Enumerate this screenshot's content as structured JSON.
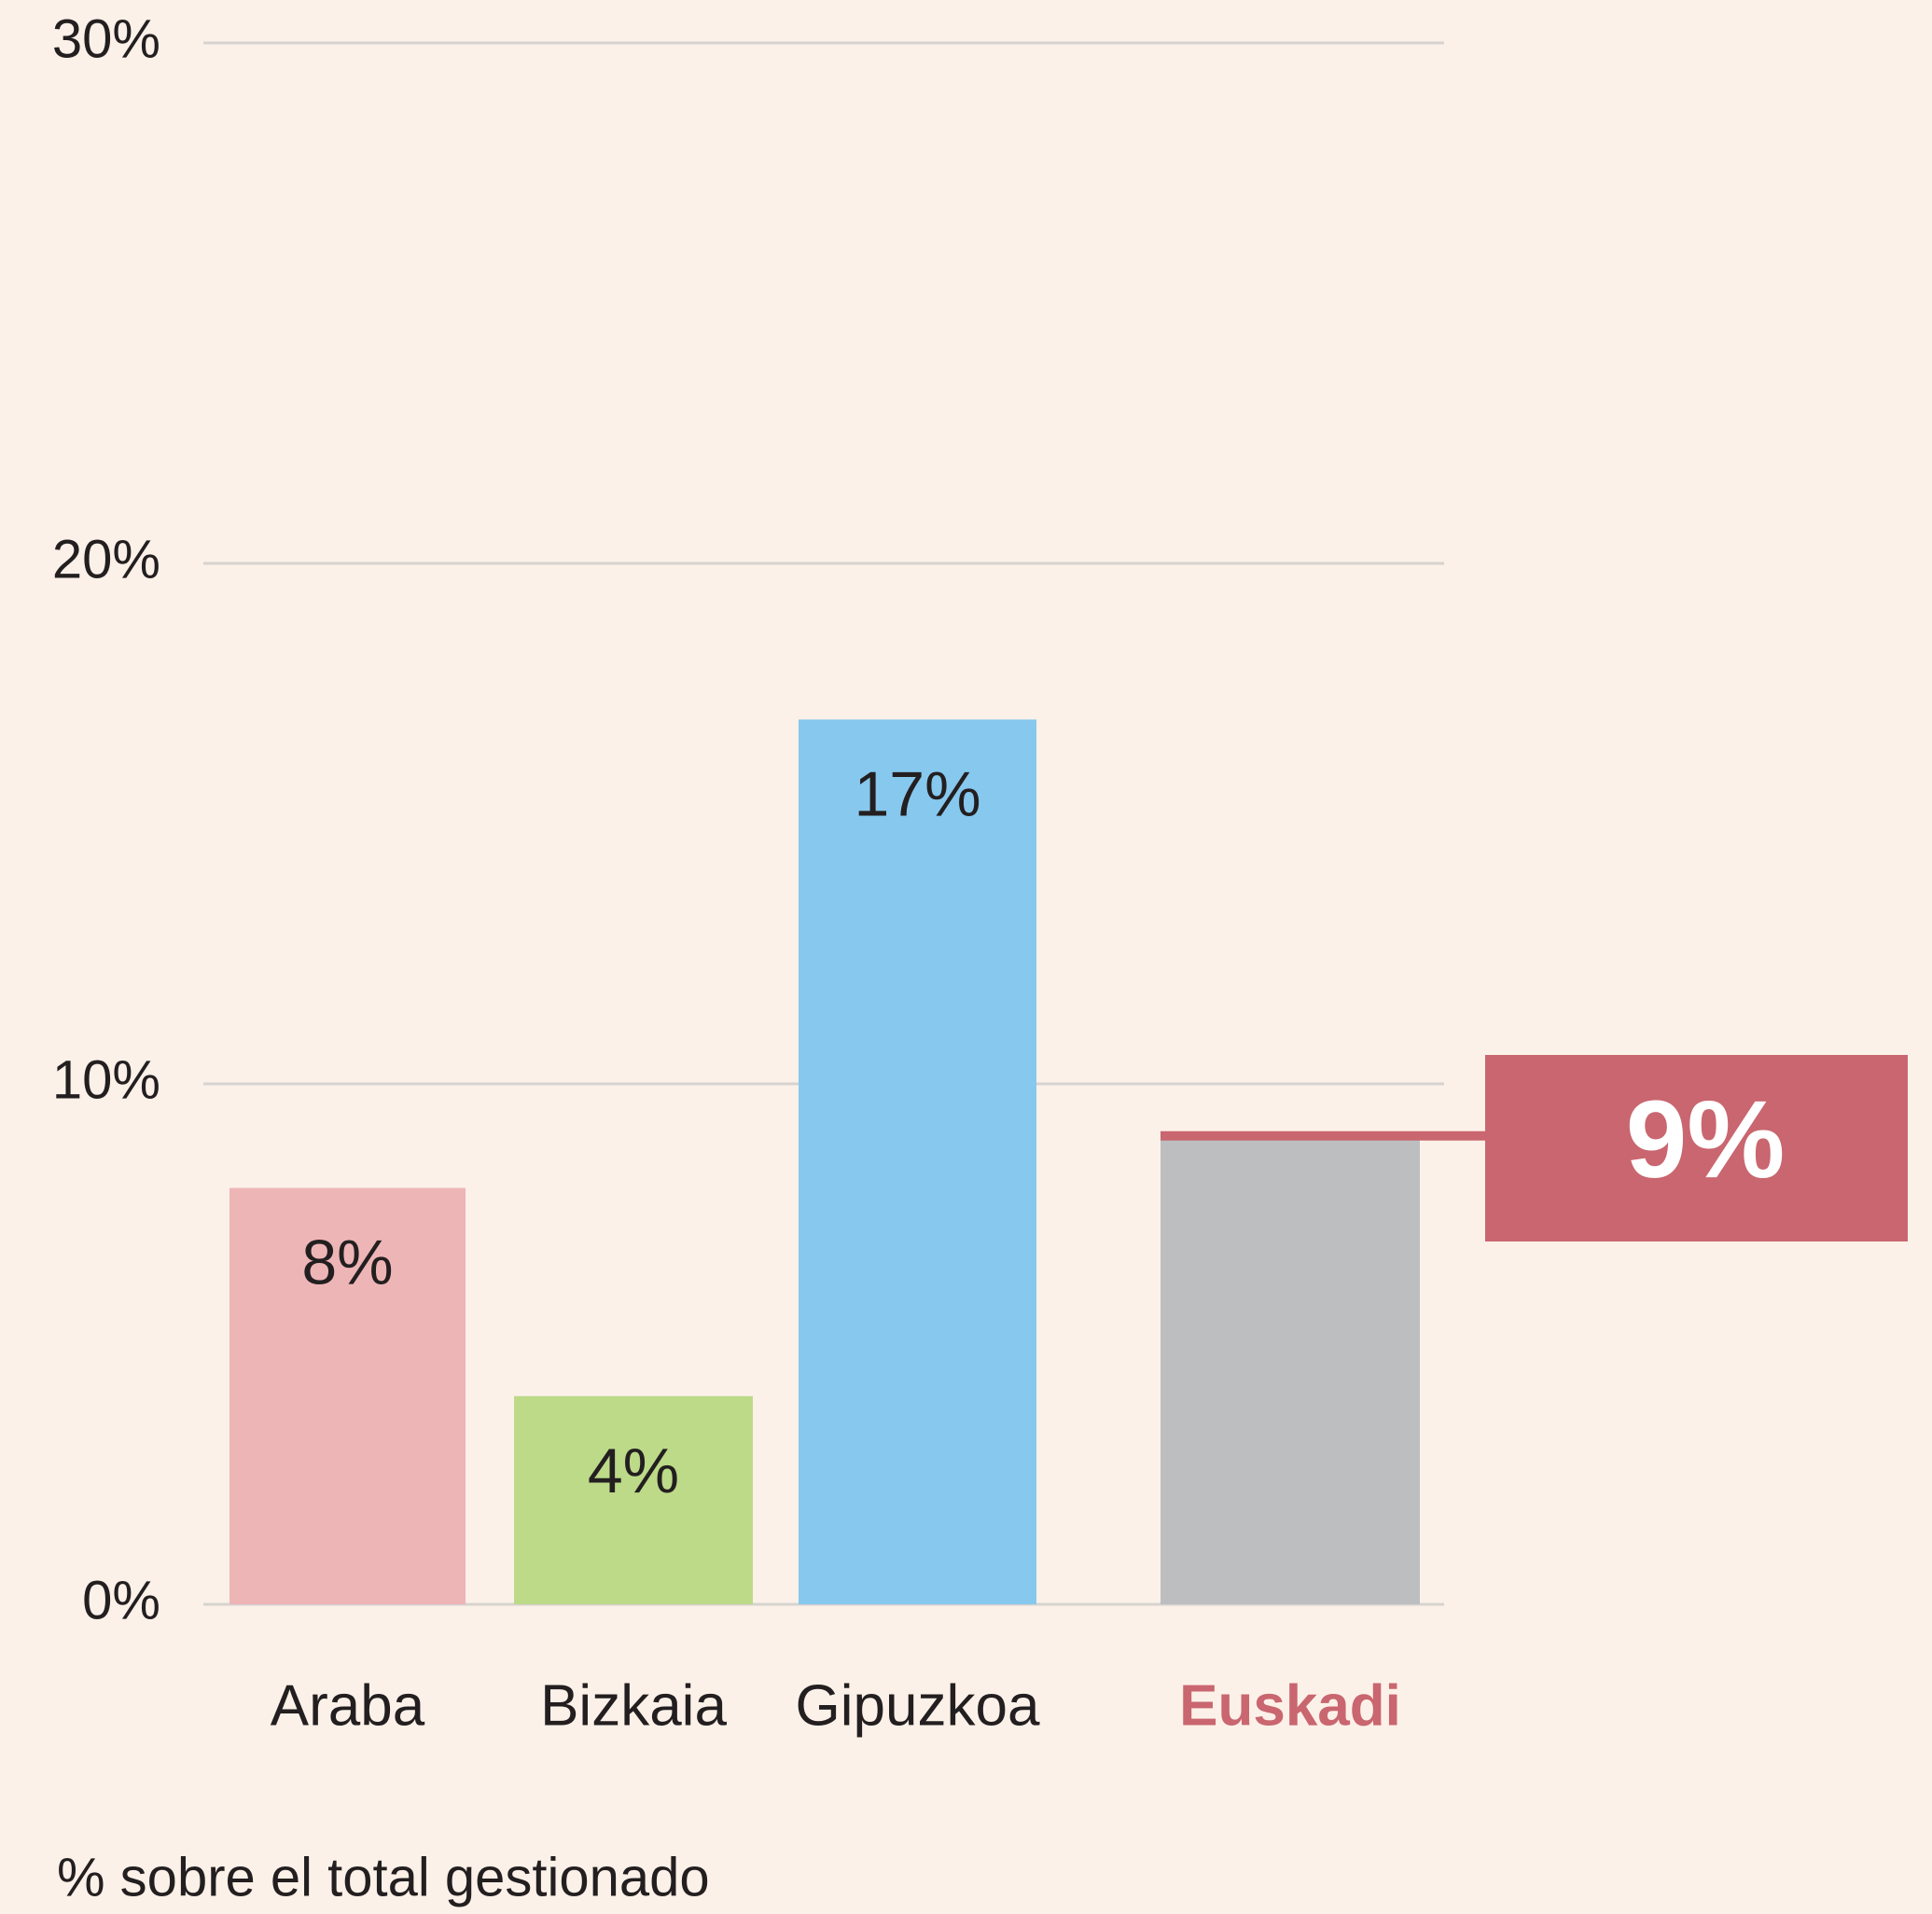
{
  "chart_data": {
    "type": "bar",
    "categories": [
      "Araba",
      "Bizkaia",
      "Gipuzkoa",
      "Euskadi"
    ],
    "values": [
      8,
      4,
      17,
      9
    ],
    "value_labels": [
      "8%",
      "4%",
      "17%",
      "9%"
    ],
    "colors": [
      "#eeb5b7",
      "#bcda88",
      "#87c8ee",
      "#bdbec0"
    ],
    "highlight": {
      "index": 3,
      "color": "#c9666f"
    },
    "ylim": [
      0,
      30
    ],
    "yticks": [
      {
        "value": 0,
        "label": "0%"
      },
      {
        "value": 10,
        "label": "10%"
      },
      {
        "value": 20,
        "label": "20%"
      },
      {
        "value": 30,
        "label": "30%"
      }
    ],
    "grid": true,
    "note": "% sobre el total gestionado"
  }
}
